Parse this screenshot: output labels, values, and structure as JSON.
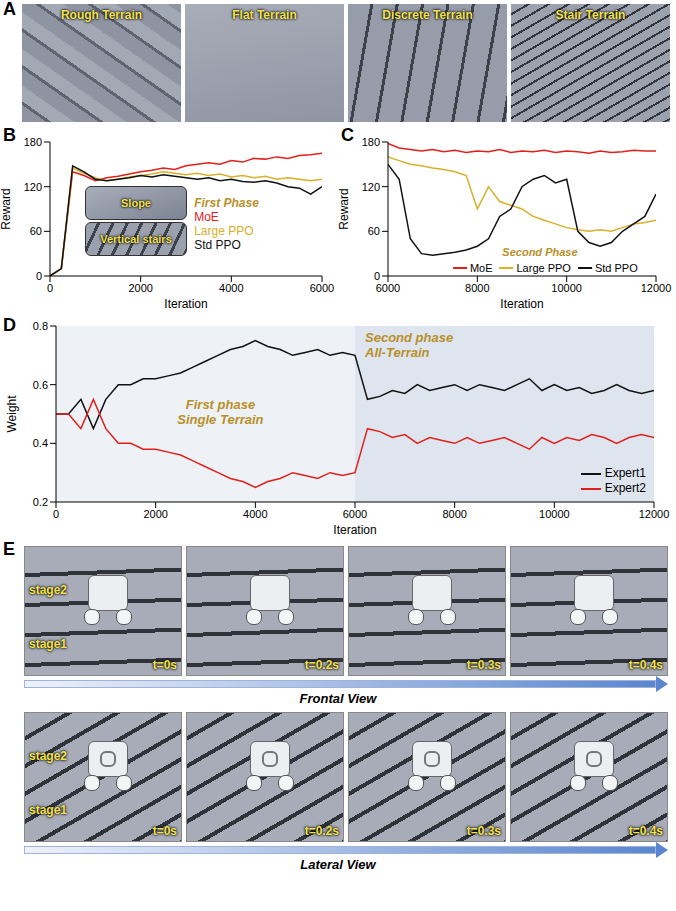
{
  "panel_a": {
    "panel": "A",
    "images": [
      "Rough Terrain",
      "Flat Terrain",
      "Discrete Terrain",
      "Stair Terrain"
    ]
  },
  "chart_data": [
    {
      "panel": "B",
      "type": "line",
      "x_label": "Iteration",
      "y_label": "Reward",
      "xlim": [
        0,
        6000
      ],
      "xticks": [
        0,
        2000,
        4000,
        6000
      ],
      "ylim": [
        0,
        180
      ],
      "yticks": [
        0,
        60,
        120,
        180
      ],
      "grid": false,
      "legend": "lower right",
      "annotation": "First Phase",
      "insets": [
        "Slope",
        "Vertical stairs"
      ],
      "x": [
        0,
        250,
        500,
        750,
        1000,
        1250,
        1500,
        1750,
        2000,
        2250,
        2500,
        2750,
        3000,
        3250,
        3500,
        3750,
        4000,
        4250,
        4500,
        4750,
        5000,
        5250,
        5500,
        5750,
        6000
      ],
      "series": [
        {
          "name": "MoE",
          "color": "#e0201b",
          "values": [
            0,
            10,
            140,
            135,
            128,
            132,
            134,
            137,
            140,
            142,
            145,
            143,
            148,
            150,
            152,
            150,
            155,
            153,
            158,
            157,
            160,
            158,
            162,
            163,
            165
          ]
        },
        {
          "name": "Large PPO",
          "color": "#d8b02a",
          "values": [
            0,
            10,
            145,
            138,
            132,
            128,
            130,
            133,
            135,
            137,
            140,
            138,
            136,
            138,
            135,
            137,
            133,
            135,
            132,
            134,
            130,
            132,
            130,
            128,
            130
          ]
        },
        {
          "name": "Std PPO",
          "color": "#111111",
          "values": [
            0,
            10,
            148,
            140,
            130,
            128,
            130,
            132,
            135,
            133,
            136,
            134,
            132,
            130,
            132,
            128,
            130,
            127,
            126,
            128,
            125,
            120,
            118,
            110,
            120
          ]
        }
      ]
    },
    {
      "panel": "C",
      "type": "line",
      "x_label": "Iteration",
      "y_label": "Reward",
      "xlim": [
        6000,
        12000
      ],
      "xticks": [
        6000,
        8000,
        10000,
        12000
      ],
      "ylim": [
        0,
        180
      ],
      "yticks": [
        0,
        60,
        120,
        180
      ],
      "grid": false,
      "legend": "bottom",
      "annotation": "Second Phase",
      "x": [
        6000,
        6250,
        6500,
        6750,
        7000,
        7250,
        7500,
        7750,
        8000,
        8250,
        8500,
        8750,
        9000,
        9250,
        9500,
        9750,
        10000,
        10250,
        10500,
        10750,
        11000,
        11250,
        11500,
        11750,
        12000
      ],
      "series": [
        {
          "name": "MoE",
          "color": "#e0201b",
          "values": [
            178,
            172,
            170,
            168,
            170,
            167,
            169,
            166,
            168,
            167,
            170,
            166,
            168,
            167,
            169,
            166,
            168,
            167,
            165,
            168,
            166,
            167,
            169,
            168,
            168
          ]
        },
        {
          "name": "Large PPO",
          "color": "#d8b02a",
          "values": [
            160,
            155,
            150,
            148,
            145,
            143,
            140,
            135,
            90,
            120,
            100,
            95,
            90,
            80,
            75,
            70,
            65,
            62,
            60,
            62,
            60,
            65,
            70,
            72,
            75
          ]
        },
        {
          "name": "Std PPO",
          "color": "#111111",
          "values": [
            150,
            130,
            50,
            30,
            28,
            30,
            32,
            35,
            40,
            50,
            80,
            90,
            120,
            130,
            135,
            125,
            130,
            60,
            45,
            40,
            45,
            60,
            70,
            80,
            110
          ]
        }
      ]
    },
    {
      "panel": "D",
      "type": "line",
      "x_label": "Iteration",
      "y_label": "Weight",
      "xlim": [
        0,
        12000
      ],
      "xticks": [
        0,
        2000,
        4000,
        6000,
        8000,
        10000,
        12000
      ],
      "ylim": [
        0.2,
        0.8
      ],
      "yticks": [
        0.2,
        0.4,
        0.6,
        0.8
      ],
      "grid": false,
      "legend": "lower right",
      "phases": [
        {
          "lines": [
            "First phase",
            "Single Terrain"
          ],
          "range": [
            0,
            6000
          ]
        },
        {
          "lines": [
            "Second phase",
            "All-Terrain"
          ],
          "range": [
            6000,
            12000
          ]
        }
      ],
      "x": [
        0,
        250,
        500,
        750,
        1000,
        1250,
        1500,
        1750,
        2000,
        2250,
        2500,
        2750,
        3000,
        3250,
        3500,
        3750,
        4000,
        4250,
        4500,
        4750,
        5000,
        5250,
        5500,
        5750,
        6000,
        6250,
        6500,
        6750,
        7000,
        7250,
        7500,
        7750,
        8000,
        8250,
        8500,
        8750,
        9000,
        9250,
        9500,
        9750,
        10000,
        10250,
        10500,
        10750,
        11000,
        11250,
        11500,
        11750,
        12000
      ],
      "series": [
        {
          "name": "Expert1",
          "color": "#111111",
          "values": [
            0.5,
            0.5,
            0.55,
            0.45,
            0.55,
            0.6,
            0.6,
            0.62,
            0.62,
            0.63,
            0.64,
            0.66,
            0.68,
            0.7,
            0.72,
            0.73,
            0.75,
            0.73,
            0.72,
            0.7,
            0.71,
            0.72,
            0.7,
            0.71,
            0.7,
            0.55,
            0.56,
            0.58,
            0.57,
            0.6,
            0.58,
            0.59,
            0.6,
            0.58,
            0.6,
            0.59,
            0.58,
            0.6,
            0.62,
            0.58,
            0.6,
            0.58,
            0.59,
            0.57,
            0.58,
            0.6,
            0.58,
            0.57,
            0.58
          ]
        },
        {
          "name": "Expert2",
          "color": "#e0201b",
          "values": [
            0.5,
            0.5,
            0.45,
            0.55,
            0.45,
            0.4,
            0.4,
            0.38,
            0.38,
            0.37,
            0.36,
            0.34,
            0.32,
            0.3,
            0.28,
            0.27,
            0.25,
            0.27,
            0.28,
            0.3,
            0.29,
            0.28,
            0.3,
            0.29,
            0.3,
            0.45,
            0.44,
            0.42,
            0.43,
            0.4,
            0.42,
            0.41,
            0.4,
            0.42,
            0.4,
            0.41,
            0.42,
            0.4,
            0.38,
            0.42,
            0.4,
            0.42,
            0.41,
            0.43,
            0.42,
            0.4,
            0.42,
            0.43,
            0.42
          ]
        }
      ]
    }
  ],
  "panel_e": {
    "panel": "E",
    "rows": [
      {
        "view": "Frontal View",
        "stage_labels": [
          "stage2",
          "stage1"
        ],
        "frames": [
          "t=0s",
          "t=0.2s",
          "t=0.3s",
          "t=0.4s"
        ]
      },
      {
        "view": "Lateral View",
        "stage_labels": [
          "stage2",
          "stage1"
        ],
        "frames": [
          "t=0s",
          "t=0.2s",
          "t=0.3s",
          "t=0.4s"
        ]
      }
    ]
  }
}
